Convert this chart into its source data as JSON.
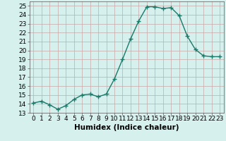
{
  "x": [
    0,
    1,
    2,
    3,
    4,
    5,
    6,
    7,
    8,
    9,
    10,
    11,
    12,
    13,
    14,
    15,
    16,
    17,
    18,
    19,
    20,
    21,
    22,
    23
  ],
  "y": [
    14.1,
    14.3,
    13.9,
    13.4,
    13.8,
    14.5,
    15.0,
    15.1,
    14.8,
    15.1,
    16.8,
    19.0,
    21.3,
    23.3,
    24.9,
    24.9,
    24.7,
    24.8,
    23.9,
    21.6,
    20.1,
    19.4,
    19.3,
    19.3
  ],
  "line_color": "#1a7a6a",
  "marker": "+",
  "marker_size": 4,
  "line_width": 1.0,
  "bg_color": "#d6f0ee",
  "grid_major_color": "#c8a8a8",
  "grid_minor_color": "#e0c8c8",
  "xlabel": "Humidex (Indice chaleur)",
  "tick_fontsize": 6.5,
  "xlabel_fontsize": 7.5,
  "ylim": [
    13,
    25.5
  ],
  "yticks": [
    13,
    14,
    15,
    16,
    17,
    18,
    19,
    20,
    21,
    22,
    23,
    24,
    25
  ],
  "xticks": [
    0,
    1,
    2,
    3,
    4,
    5,
    6,
    7,
    8,
    9,
    10,
    11,
    12,
    13,
    14,
    15,
    16,
    17,
    18,
    19,
    20,
    21,
    22,
    23
  ]
}
